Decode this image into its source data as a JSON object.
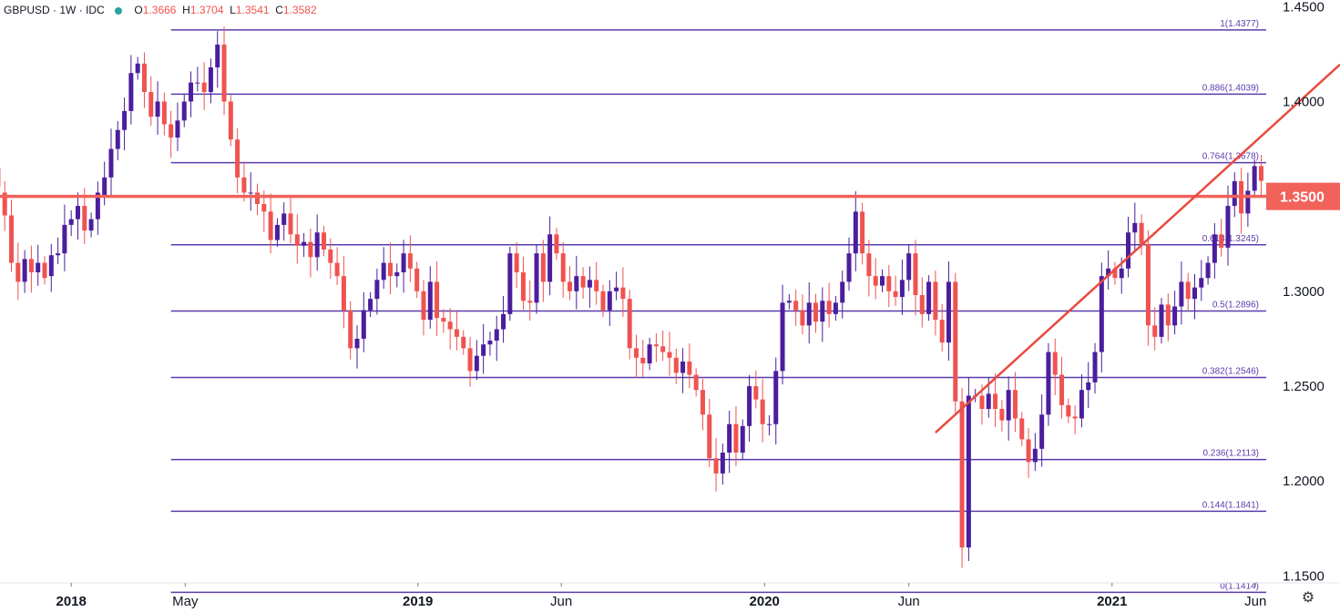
{
  "header": {
    "symbol": "GBPUSD",
    "interval": "1W",
    "source": "IDC",
    "ohlc": {
      "o_label": "O",
      "o": "1.3666",
      "h_label": "H",
      "h": "1.3704",
      "l_label": "L",
      "l": "1.3541",
      "c_label": "C",
      "c": "1.3582"
    }
  },
  "colors": {
    "up": "#4a1e9e",
    "down": "#ef5350",
    "fib": "#5b3cab",
    "resistance": "#f0625a",
    "trendline": "#e84a3f",
    "price_badge": "#f0625a",
    "axis_text": "#131722"
  },
  "settings_icon": "gear-icon",
  "chart_data": {
    "type": "candlestick",
    "title": "",
    "yrange": [
      1.131,
      1.4535
    ],
    "y_ticks": [
      "1.4500",
      "1.4000",
      "1.3500",
      "1.3000",
      "1.2500",
      "1.2000",
      "1.1500"
    ],
    "y_tick_values": [
      1.45,
      1.4,
      1.35,
      1.3,
      1.25,
      1.2,
      1.15
    ],
    "x_labels": [
      "2018",
      "May",
      "2019",
      "Jun",
      "2020",
      "Jun",
      "2021",
      "Jun"
    ],
    "x_label_dates": [
      "2018-01-01",
      "2018-05-01",
      "2019-01-01",
      "2019-06-01",
      "2020-01-01",
      "2020-06-01",
      "2021-01-01",
      "2021-06-01"
    ],
    "x_range": [
      "2017-10-18",
      "2021-08-29"
    ],
    "fib_levels": [
      {
        "ratio": "1",
        "price": 1.4377,
        "label": "1(1.4377)"
      },
      {
        "ratio": "0.886",
        "price": 1.4039,
        "label": "0.886(1.4039)"
      },
      {
        "ratio": "0.764",
        "price": 1.3678,
        "label": "0.764(1.3678)"
      },
      {
        "ratio": "0.618",
        "price": 1.3245,
        "label": "0.618(1.3245)"
      },
      {
        "ratio": "0.5",
        "price": 1.2896,
        "label": "0.5(1.2896)"
      },
      {
        "ratio": "0.382",
        "price": 1.2546,
        "label": "0.382(1.2546)"
      },
      {
        "ratio": "0.236",
        "price": 1.2113,
        "label": "0.236(1.2113)"
      },
      {
        "ratio": "0.144",
        "price": 1.1841,
        "label": "0.144(1.1841)"
      },
      {
        "ratio": "0",
        "price": 1.1414,
        "label": "0(1.1414)"
      }
    ],
    "fib_start_date": "2018-04-16",
    "horizontal_level": {
      "price": 1.35,
      "label": "1.3500"
    },
    "trendline": {
      "start": {
        "date": "2020-06-29",
        "price": 1.2255
      },
      "end": {
        "date": "2021-08-29",
        "price": 1.4195
      }
    },
    "candles_start_date": "2017-10-16",
    "candles": [
      [
        1.365,
        1.355
      ],
      [
        1.352,
        1.34
      ],
      [
        1.34,
        1.315
      ],
      [
        1.315,
        1.305
      ],
      [
        1.305,
        1.317
      ],
      [
        1.317,
        1.31
      ],
      [
        1.31,
        1.315
      ],
      [
        1.315,
        1.307
      ],
      [
        1.308,
        1.319
      ],
      [
        1.319,
        1.32
      ],
      [
        1.32,
        1.335
      ],
      [
        1.335,
        1.338
      ],
      [
        1.338,
        1.345
      ],
      [
        1.345,
        1.332
      ],
      [
        1.332,
        1.338
      ],
      [
        1.338,
        1.352
      ],
      [
        1.35,
        1.36
      ],
      [
        1.36,
        1.375
      ],
      [
        1.375,
        1.385
      ],
      [
        1.385,
        1.395
      ],
      [
        1.395,
        1.415
      ],
      [
        1.415,
        1.42
      ],
      [
        1.42,
        1.405
      ],
      [
        1.405,
        1.392
      ],
      [
        1.392,
        1.4
      ],
      [
        1.4,
        1.388
      ],
      [
        1.388,
        1.381
      ],
      [
        1.381,
        1.39
      ],
      [
        1.39,
        1.4
      ],
      [
        1.4,
        1.41
      ],
      [
        1.41,
        1.41
      ],
      [
        1.41,
        1.405
      ],
      [
        1.405,
        1.418
      ],
      [
        1.418,
        1.43
      ],
      [
        1.43,
        1.4
      ],
      [
        1.4,
        1.38
      ],
      [
        1.38,
        1.36
      ],
      [
        1.36,
        1.352
      ],
      [
        1.352,
        1.352
      ],
      [
        1.352,
        1.346
      ],
      [
        1.346,
        1.342
      ],
      [
        1.342,
        1.327
      ],
      [
        1.327,
        1.335
      ],
      [
        1.335,
        1.341
      ],
      [
        1.341,
        1.33
      ],
      [
        1.33,
        1.324
      ],
      [
        1.324,
        1.326
      ],
      [
        1.326,
        1.318
      ],
      [
        1.318,
        1.331
      ],
      [
        1.331,
        1.322
      ],
      [
        1.322,
        1.315
      ],
      [
        1.315,
        1.308
      ],
      [
        1.308,
        1.29
      ],
      [
        1.29,
        1.27
      ],
      [
        1.27,
        1.275
      ],
      [
        1.275,
        1.29
      ],
      [
        1.29,
        1.296
      ],
      [
        1.296,
        1.306
      ],
      [
        1.306,
        1.315
      ],
      [
        1.315,
        1.308
      ],
      [
        1.308,
        1.31
      ],
      [
        1.31,
        1.32
      ],
      [
        1.32,
        1.312
      ],
      [
        1.312,
        1.3
      ],
      [
        1.3,
        1.285
      ],
      [
        1.285,
        1.305
      ],
      [
        1.305,
        1.286
      ],
      [
        1.286,
        1.284
      ],
      [
        1.284,
        1.28
      ],
      [
        1.28,
        1.276
      ],
      [
        1.276,
        1.27
      ],
      [
        1.27,
        1.258
      ],
      [
        1.258,
        1.266
      ],
      [
        1.266,
        1.272
      ],
      [
        1.272,
        1.274
      ],
      [
        1.274,
        1.28
      ],
      [
        1.28,
        1.288
      ],
      [
        1.288,
        1.32
      ],
      [
        1.32,
        1.31
      ],
      [
        1.31,
        1.295
      ],
      [
        1.295,
        1.294
      ],
      [
        1.294,
        1.32
      ],
      [
        1.32,
        1.305
      ],
      [
        1.305,
        1.33
      ],
      [
        1.33,
        1.32
      ],
      [
        1.32,
        1.305
      ],
      [
        1.305,
        1.3
      ],
      [
        1.3,
        1.308
      ],
      [
        1.308,
        1.302
      ],
      [
        1.302,
        1.306
      ],
      [
        1.306,
        1.3
      ],
      [
        1.3,
        1.29
      ],
      [
        1.29,
        1.3
      ],
      [
        1.3,
        1.302
      ],
      [
        1.302,
        1.296
      ],
      [
        1.296,
        1.27
      ],
      [
        1.27,
        1.265
      ],
      [
        1.265,
        1.262
      ],
      [
        1.262,
        1.272
      ],
      [
        1.272,
        1.271
      ],
      [
        1.271,
        1.268
      ],
      [
        1.268,
        1.265
      ],
      [
        1.265,
        1.257
      ],
      [
        1.257,
        1.263
      ],
      [
        1.263,
        1.256
      ],
      [
        1.256,
        1.248
      ],
      [
        1.248,
        1.235
      ],
      [
        1.235,
        1.212
      ],
      [
        1.212,
        1.204
      ],
      [
        1.204,
        1.215
      ],
      [
        1.215,
        1.23
      ],
      [
        1.23,
        1.215
      ],
      [
        1.215,
        1.229
      ],
      [
        1.229,
        1.25
      ],
      [
        1.25,
        1.243
      ],
      [
        1.243,
        1.23
      ],
      [
        1.23,
        1.23
      ],
      [
        1.23,
        1.258
      ],
      [
        1.258,
        1.294
      ],
      [
        1.294,
        1.295
      ],
      [
        1.295,
        1.29
      ],
      [
        1.29,
        1.282
      ],
      [
        1.282,
        1.294
      ],
      [
        1.294,
        1.284
      ],
      [
        1.284,
        1.295
      ],
      [
        1.295,
        1.288
      ],
      [
        1.288,
        1.294
      ],
      [
        1.294,
        1.305
      ],
      [
        1.305,
        1.32
      ],
      [
        1.32,
        1.342
      ],
      [
        1.342,
        1.32
      ],
      [
        1.32,
        1.308
      ],
      [
        1.308,
        1.303
      ],
      [
        1.303,
        1.308
      ],
      [
        1.308,
        1.3
      ],
      [
        1.3,
        1.297
      ],
      [
        1.297,
        1.306
      ],
      [
        1.306,
        1.32
      ],
      [
        1.32,
        1.298
      ],
      [
        1.298,
        1.288
      ],
      [
        1.288,
        1.305
      ],
      [
        1.305,
        1.285
      ],
      [
        1.285,
        1.273
      ],
      [
        1.273,
        1.305
      ],
      [
        1.305,
        1.242
      ],
      [
        1.242,
        1.165
      ],
      [
        1.165,
        1.245
      ],
      [
        1.245,
        1.245
      ],
      [
        1.245,
        1.238
      ],
      [
        1.238,
        1.246
      ],
      [
        1.246,
        1.238
      ],
      [
        1.238,
        1.232
      ],
      [
        1.232,
        1.248
      ],
      [
        1.248,
        1.233
      ],
      [
        1.233,
        1.222
      ],
      [
        1.222,
        1.21
      ],
      [
        1.21,
        1.217
      ],
      [
        1.217,
        1.235
      ],
      [
        1.235,
        1.268
      ],
      [
        1.268,
        1.256
      ],
      [
        1.256,
        1.24
      ],
      [
        1.24,
        1.234
      ],
      [
        1.234,
        1.233
      ],
      [
        1.233,
        1.248
      ],
      [
        1.248,
        1.252
      ],
      [
        1.252,
        1.268
      ],
      [
        1.268,
        1.308
      ],
      [
        1.308,
        1.312
      ],
      [
        1.312,
        1.307
      ],
      [
        1.307,
        1.312
      ],
      [
        1.312,
        1.331
      ],
      [
        1.331,
        1.336
      ],
      [
        1.336,
        1.325
      ],
      [
        1.325,
        1.282
      ],
      [
        1.282,
        1.276
      ],
      [
        1.276,
        1.293
      ],
      [
        1.293,
        1.282
      ],
      [
        1.282,
        1.292
      ],
      [
        1.292,
        1.305
      ],
      [
        1.305,
        1.296
      ],
      [
        1.296,
        1.302
      ],
      [
        1.302,
        1.307
      ],
      [
        1.307,
        1.315
      ],
      [
        1.315,
        1.33
      ],
      [
        1.33,
        1.323
      ],
      [
        1.323,
        1.345
      ],
      [
        1.345,
        1.358
      ],
      [
        1.358,
        1.341
      ],
      [
        1.341,
        1.353
      ],
      [
        1.353,
        1.366
      ],
      [
        1.366,
        1.3582
      ]
    ]
  }
}
